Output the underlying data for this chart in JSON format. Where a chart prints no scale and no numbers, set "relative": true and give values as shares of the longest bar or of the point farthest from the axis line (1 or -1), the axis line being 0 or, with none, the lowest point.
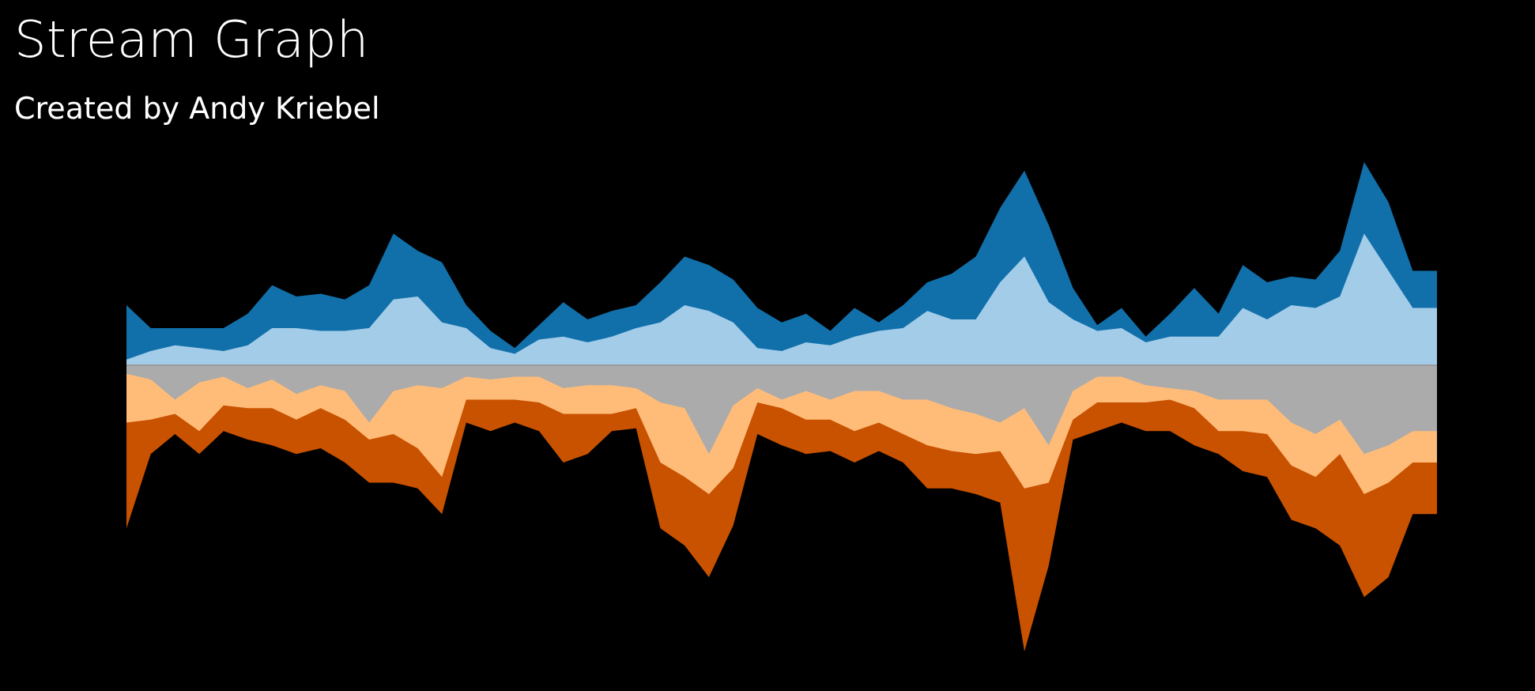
{
  "chart_data": {
    "type": "area",
    "title": "Stream Graph",
    "subtitle": "Created by Andy Kriebel",
    "relative": true,
    "categories": [
      null,
      null,
      null,
      null,
      null,
      null,
      null,
      null,
      null,
      null,
      null,
      null,
      null,
      null,
      null,
      null,
      null,
      null,
      null,
      null,
      null,
      null,
      null,
      null,
      null,
      null,
      null,
      null,
      null,
      null,
      null,
      null,
      null,
      null,
      null,
      null,
      null,
      null,
      null,
      null,
      null,
      null,
      null,
      null,
      null,
      null,
      null,
      null,
      null,
      null,
      null,
      null,
      null,
      null,
      null
    ],
    "series": [
      {
        "color": "#1170aa",
        "values": [
          0.21,
          0.13,
          0.13,
          0.13,
          0.13,
          0.18,
          0.28,
          0.24,
          0.25,
          0.23,
          0.28,
          0.46,
          0.4,
          0.36,
          0.21,
          0.12,
          0.06,
          0.14,
          0.22,
          0.16,
          0.19,
          0.21,
          0.29,
          0.38,
          0.35,
          0.3,
          0.2,
          0.15,
          0.18,
          0.12,
          0.2,
          0.15,
          0.21,
          0.29,
          0.32,
          0.38,
          0.55,
          0.68,
          0.49,
          0.27,
          0.14,
          0.2,
          0.1,
          0.18,
          0.27,
          0.18,
          0.35,
          0.29,
          0.31,
          0.3,
          0.4,
          0.71,
          0.57,
          0.33,
          0.33
        ]
      },
      {
        "color": "#a3cce9",
        "values": [
          0.02,
          0.05,
          0.07,
          0.06,
          0.05,
          0.07,
          0.13,
          0.13,
          0.12,
          0.12,
          0.13,
          0.23,
          0.24,
          0.15,
          0.13,
          0.06,
          0.04,
          0.09,
          0.1,
          0.08,
          0.1,
          0.13,
          0.15,
          0.21,
          0.19,
          0.15,
          0.06,
          0.05,
          0.08,
          0.07,
          0.1,
          0.12,
          0.13,
          0.19,
          0.16,
          0.16,
          0.29,
          0.38,
          0.22,
          0.16,
          0.12,
          0.13,
          0.08,
          0.1,
          0.1,
          0.1,
          0.2,
          0.16,
          0.21,
          0.2,
          0.24,
          0.46,
          0.33,
          0.2,
          0.2
        ]
      },
      {
        "color": "#c85200",
        "values": [
          -0.57,
          -0.31,
          -0.24,
          -0.31,
          -0.23,
          -0.26,
          -0.28,
          -0.31,
          -0.29,
          -0.34,
          -0.41,
          -0.41,
          -0.43,
          -0.52,
          -0.2,
          -0.23,
          -0.2,
          -0.23,
          -0.34,
          -0.31,
          -0.23,
          -0.22,
          -0.57,
          -0.63,
          -0.74,
          -0.56,
          -0.24,
          -0.28,
          -0.31,
          -0.3,
          -0.34,
          -0.3,
          -0.34,
          -0.43,
          -0.43,
          -0.45,
          -0.48,
          -1.0,
          -0.7,
          -0.26,
          -0.23,
          -0.2,
          -0.23,
          -0.23,
          -0.28,
          -0.31,
          -0.37,
          -0.39,
          -0.54,
          -0.57,
          -0.63,
          -0.81,
          -0.74,
          -0.52,
          -0.52
        ]
      },
      {
        "color": "#ffbc79",
        "values": [
          -0.2,
          -0.19,
          -0.17,
          -0.23,
          -0.14,
          -0.15,
          -0.15,
          -0.19,
          -0.15,
          -0.19,
          -0.26,
          -0.24,
          -0.29,
          -0.39,
          -0.12,
          -0.12,
          -0.12,
          -0.13,
          -0.17,
          -0.17,
          -0.17,
          -0.15,
          -0.34,
          -0.39,
          -0.45,
          -0.36,
          -0.13,
          -0.15,
          -0.19,
          -0.19,
          -0.23,
          -0.2,
          -0.24,
          -0.28,
          -0.3,
          -0.31,
          -0.3,
          -0.43,
          -0.41,
          -0.19,
          -0.13,
          -0.13,
          -0.13,
          -0.12,
          -0.15,
          -0.23,
          -0.23,
          -0.24,
          -0.35,
          -0.39,
          -0.31,
          -0.45,
          -0.41,
          -0.34,
          -0.34
        ]
      },
      {
        "color": "#ababab",
        "values": [
          -0.03,
          -0.05,
          -0.12,
          -0.06,
          -0.04,
          -0.08,
          -0.05,
          -0.1,
          -0.07,
          -0.09,
          -0.2,
          -0.09,
          -0.07,
          -0.08,
          -0.04,
          -0.05,
          -0.04,
          -0.04,
          -0.08,
          -0.07,
          -0.07,
          -0.08,
          -0.13,
          -0.15,
          -0.31,
          -0.14,
          -0.08,
          -0.12,
          -0.09,
          -0.12,
          -0.09,
          -0.09,
          -0.12,
          -0.12,
          -0.15,
          -0.17,
          -0.2,
          -0.15,
          -0.28,
          -0.09,
          -0.04,
          -0.04,
          -0.07,
          -0.08,
          -0.09,
          -0.12,
          -0.12,
          -0.12,
          -0.2,
          -0.24,
          -0.19,
          -0.31,
          -0.28,
          -0.23,
          -0.23
        ]
      }
    ]
  }
}
